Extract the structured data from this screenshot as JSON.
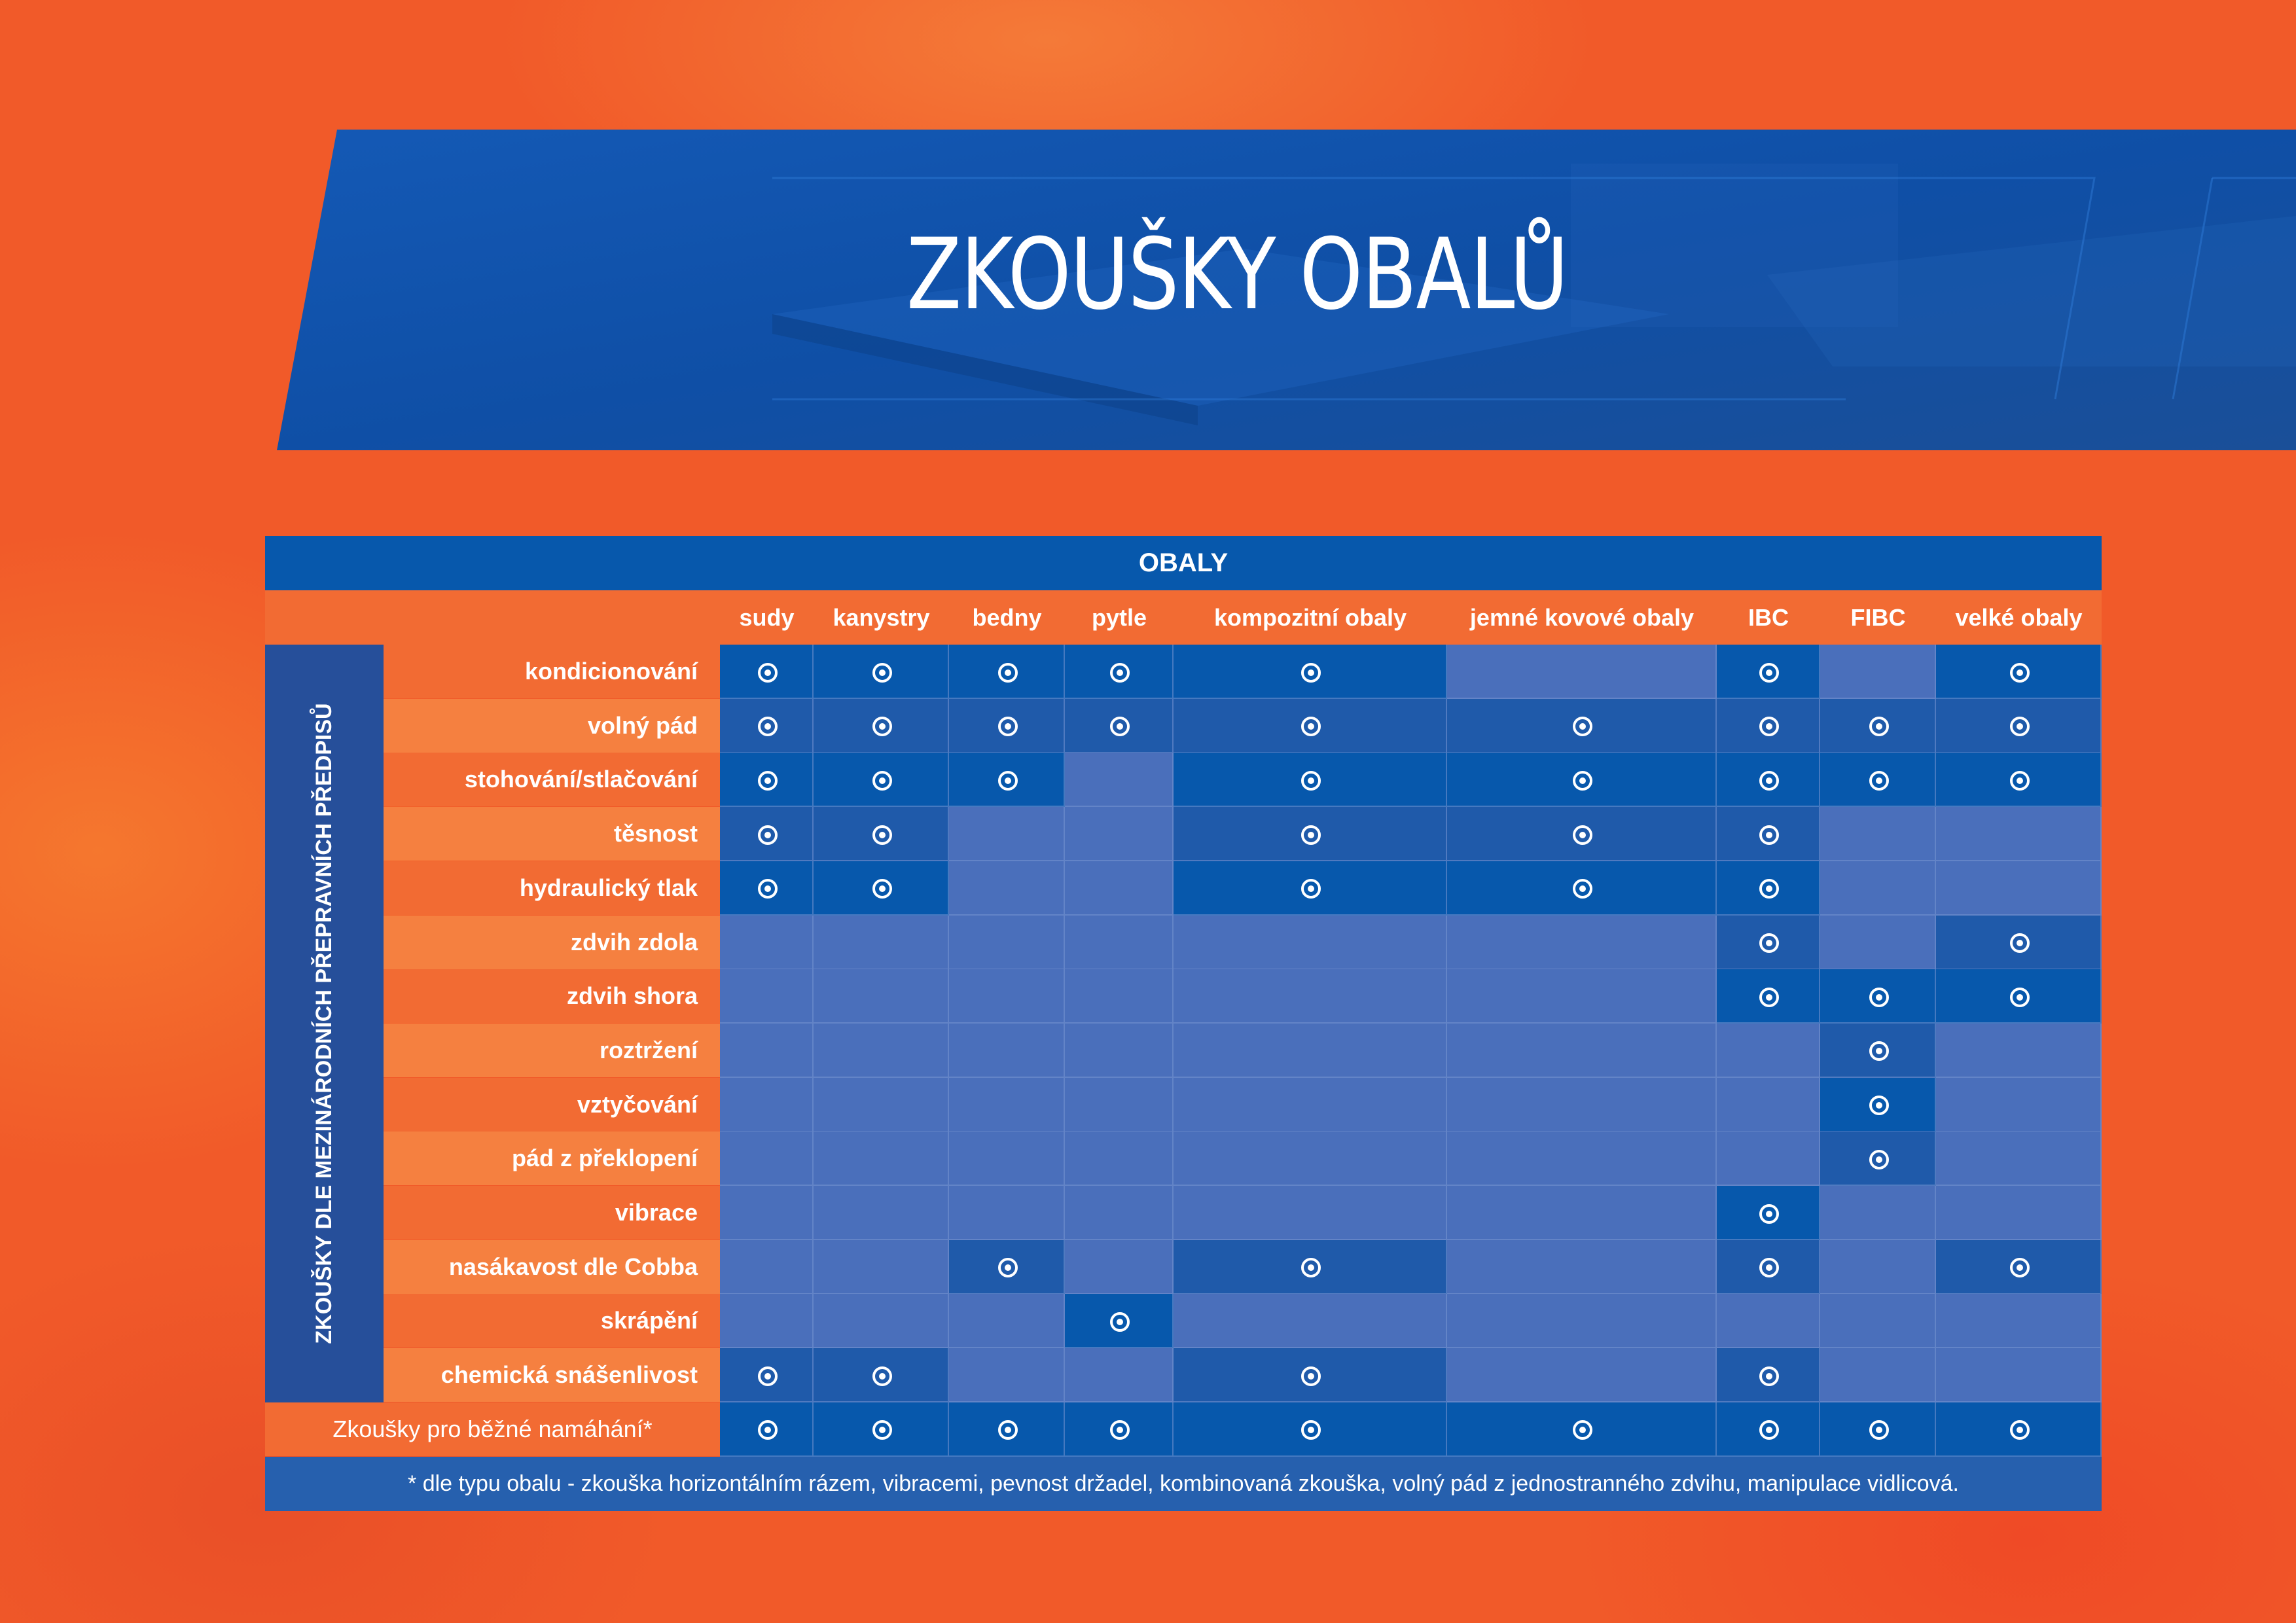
{
  "title": "ZKOUŠKY OBALŮ",
  "table": {
    "header": "OBALY",
    "side_label": "ZKOUŠKY DLE MEZINÁRODNÍCH PŘEPRAVNÍCH PŘEDPISŮ",
    "columns": [
      "sudy",
      "kanystry",
      "bedny",
      "pytle",
      "kompozitní  obaly",
      "jemné kovové obaly",
      "IBC",
      "FIBC",
      "velké obaly"
    ],
    "rows": [
      {
        "label": "kondicionování",
        "marks": [
          1,
          1,
          1,
          1,
          1,
          0,
          1,
          0,
          1
        ]
      },
      {
        "label": "volný pád",
        "marks": [
          1,
          1,
          1,
          1,
          1,
          1,
          1,
          1,
          1
        ]
      },
      {
        "label": "stohování/stlačování",
        "marks": [
          1,
          1,
          1,
          0,
          1,
          1,
          1,
          1,
          1
        ]
      },
      {
        "label": "těsnost",
        "marks": [
          1,
          1,
          0,
          0,
          1,
          1,
          1,
          0,
          0
        ]
      },
      {
        "label": "hydraulický tlak",
        "marks": [
          1,
          1,
          0,
          0,
          1,
          1,
          1,
          0,
          0
        ]
      },
      {
        "label": "zdvih zdola",
        "marks": [
          0,
          0,
          0,
          0,
          0,
          0,
          1,
          0,
          1
        ]
      },
      {
        "label": "zdvih shora",
        "marks": [
          0,
          0,
          0,
          0,
          0,
          0,
          1,
          1,
          1
        ]
      },
      {
        "label": "roztržení",
        "marks": [
          0,
          0,
          0,
          0,
          0,
          0,
          0,
          1,
          0
        ]
      },
      {
        "label": "vztyčování",
        "marks": [
          0,
          0,
          0,
          0,
          0,
          0,
          0,
          1,
          0
        ]
      },
      {
        "label": "pád z překlopení",
        "marks": [
          0,
          0,
          0,
          0,
          0,
          0,
          0,
          1,
          0
        ]
      },
      {
        "label": "vibrace",
        "marks": [
          0,
          0,
          0,
          0,
          0,
          0,
          1,
          0,
          0
        ]
      },
      {
        "label": "nasákavost dle Cobba",
        "marks": [
          0,
          0,
          1,
          0,
          1,
          0,
          1,
          0,
          1
        ]
      },
      {
        "label": "skrápění",
        "marks": [
          0,
          0,
          0,
          1,
          0,
          0,
          0,
          0,
          0
        ]
      },
      {
        "label": "chemická snášenlivost",
        "marks": [
          1,
          1,
          0,
          0,
          1,
          0,
          1,
          0,
          0
        ]
      }
    ],
    "general_row": {
      "label": "Zkoušky pro běžné namáhání*",
      "marks": [
        1,
        1,
        1,
        1,
        1,
        1,
        1,
        1,
        1
      ]
    },
    "footnote": "* dle typu obalu - zkouška horizontálním rázem, vibracemi, pevnost držadel, kombinovaná zkouška, volný pád z jednostranného zdvihu, manipulace vidlicová."
  },
  "colors": {
    "background": "#f15a29",
    "banner": "#0d4fa8",
    "header_blue": "#0758ac",
    "marked_cell": "#0758ac",
    "marked_cell_alt": "#1f5aaa",
    "empty_cell": "#4a6fbb",
    "side_panel": "#264f9a",
    "label_orange": "#f26b33",
    "label_orange_alt": "#f58040",
    "footnote_bar": "#2660ae"
  }
}
